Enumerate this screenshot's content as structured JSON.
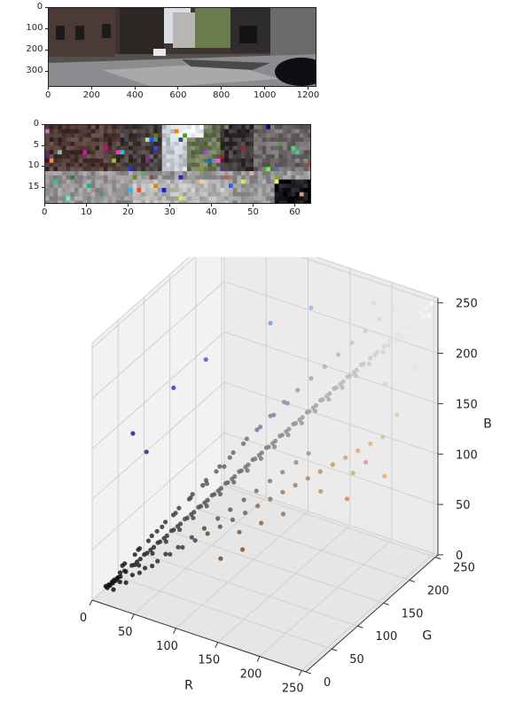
{
  "chart_data": [
    {
      "type": "image",
      "description_free": true,
      "xticks": [
        "0",
        "200",
        "400",
        "600",
        "800",
        "1000",
        "1200"
      ],
      "yticks": [
        "0",
        "100",
        "200",
        "300"
      ],
      "xlim": [
        0,
        1242
      ],
      "ylim": [
        375,
        0
      ]
    },
    {
      "type": "image",
      "xticks": [
        "0",
        "10",
        "20",
        "30",
        "40",
        "50",
        "60"
      ],
      "yticks": [
        "0",
        "5",
        "10",
        "15"
      ],
      "xlim": [
        0,
        64
      ],
      "ylim": [
        19,
        0
      ]
    },
    {
      "type": "scatter",
      "projection": "3d",
      "xlabel": "R",
      "ylabel": "G",
      "zlabel": "B",
      "xlim": [
        0,
        255
      ],
      "ylim": [
        0,
        255
      ],
      "zlim": [
        0,
        255
      ],
      "xticks": [
        "0",
        "50",
        "100",
        "150",
        "200",
        "250"
      ],
      "yticks": [
        "0",
        "50",
        "100",
        "150",
        "200",
        "250"
      ],
      "zticks": [
        "0",
        "50",
        "100",
        "150",
        "200",
        "250"
      ],
      "grid": true,
      "color_mode": "rgb_of_point",
      "points": [
        [
          10,
          10,
          12
        ],
        [
          15,
          14,
          16
        ],
        [
          20,
          18,
          20
        ],
        [
          25,
          22,
          26
        ],
        [
          30,
          28,
          30
        ],
        [
          35,
          30,
          34
        ],
        [
          40,
          36,
          40
        ],
        [
          45,
          40,
          44
        ],
        [
          50,
          46,
          50
        ],
        [
          55,
          50,
          54
        ],
        [
          60,
          56,
          60
        ],
        [
          65,
          60,
          64
        ],
        [
          70,
          66,
          70
        ],
        [
          75,
          70,
          74
        ],
        [
          80,
          76,
          80
        ],
        [
          85,
          80,
          84
        ],
        [
          90,
          86,
          90
        ],
        [
          95,
          90,
          94
        ],
        [
          100,
          96,
          100
        ],
        [
          105,
          100,
          104
        ],
        [
          110,
          106,
          110
        ],
        [
          115,
          110,
          114
        ],
        [
          120,
          116,
          120
        ],
        [
          125,
          120,
          124
        ],
        [
          130,
          126,
          130
        ],
        [
          135,
          130,
          134
        ],
        [
          140,
          136,
          140
        ],
        [
          145,
          140,
          144
        ],
        [
          150,
          146,
          150
        ],
        [
          155,
          150,
          154
        ],
        [
          160,
          156,
          160
        ],
        [
          165,
          160,
          164
        ],
        [
          170,
          166,
          170
        ],
        [
          175,
          170,
          174
        ],
        [
          180,
          176,
          180
        ],
        [
          185,
          180,
          184
        ],
        [
          190,
          186,
          190
        ],
        [
          195,
          190,
          194
        ],
        [
          200,
          196,
          200
        ],
        [
          210,
          206,
          208
        ],
        [
          220,
          216,
          216
        ],
        [
          230,
          226,
          222
        ],
        [
          240,
          236,
          230
        ],
        [
          250,
          246,
          240
        ],
        [
          18,
          12,
          10
        ],
        [
          28,
          20,
          16
        ],
        [
          38,
          30,
          24
        ],
        [
          48,
          38,
          30
        ],
        [
          58,
          48,
          40
        ],
        [
          68,
          56,
          46
        ],
        [
          78,
          66,
          54
        ],
        [
          88,
          74,
          62
        ],
        [
          98,
          84,
          70
        ],
        [
          108,
          92,
          78
        ],
        [
          118,
          102,
          86
        ],
        [
          128,
          110,
          94
        ],
        [
          138,
          120,
          102
        ],
        [
          148,
          128,
          110
        ],
        [
          158,
          138,
          118
        ],
        [
          168,
          146,
          126
        ],
        [
          24,
          24,
          32
        ],
        [
          34,
          34,
          44
        ],
        [
          44,
          44,
          56
        ],
        [
          54,
          54,
          68
        ],
        [
          64,
          64,
          80
        ],
        [
          74,
          74,
          92
        ],
        [
          84,
          84,
          104
        ],
        [
          94,
          94,
          116
        ],
        [
          104,
          104,
          128
        ],
        [
          114,
          114,
          140
        ],
        [
          124,
          124,
          150
        ],
        [
          134,
          134,
          160
        ],
        [
          144,
          144,
          170
        ],
        [
          20,
          26,
          28
        ],
        [
          32,
          40,
          42
        ],
        [
          44,
          54,
          56
        ],
        [
          56,
          66,
          70
        ],
        [
          68,
          80,
          84
        ],
        [
          80,
          92,
          96
        ],
        [
          92,
          106,
          110
        ],
        [
          40,
          40,
          140
        ],
        [
          30,
          30,
          160
        ],
        [
          60,
          60,
          200
        ],
        [
          80,
          90,
          220
        ],
        [
          120,
          150,
          240
        ],
        [
          150,
          180,
          250
        ],
        [
          200,
          220,
          250
        ],
        [
          220,
          210,
          180
        ],
        [
          240,
          200,
          160
        ],
        [
          250,
          220,
          200
        ],
        [
          230,
          120,
          110
        ],
        [
          240,
          140,
          140
        ],
        [
          250,
          160,
          120
        ],
        [
          200,
          180,
          100
        ],
        [
          180,
          150,
          90
        ],
        [
          160,
          110,
          80
        ],
        [
          140,
          100,
          70
        ],
        [
          120,
          90,
          60
        ],
        [
          130,
          80,
          50
        ],
        [
          110,
          70,
          40
        ],
        [
          12,
          10,
          11
        ],
        [
          14,
          12,
          13
        ],
        [
          16,
          14,
          15
        ],
        [
          18,
          16,
          17
        ],
        [
          13,
          11,
          14
        ],
        [
          17,
          15,
          18
        ],
        [
          22,
          19,
          21
        ],
        [
          26,
          23,
          25
        ],
        [
          21,
          20,
          24
        ],
        [
          19,
          17,
          19
        ],
        [
          33,
          29,
          31
        ],
        [
          37,
          33,
          36
        ],
        [
          42,
          38,
          41
        ],
        [
          47,
          43,
          46
        ],
        [
          52,
          47,
          51
        ],
        [
          57,
          52,
          56
        ],
        [
          62,
          57,
          61
        ],
        [
          67,
          62,
          66
        ],
        [
          72,
          67,
          71
        ],
        [
          77,
          72,
          76
        ],
        [
          82,
          77,
          81
        ],
        [
          87,
          82,
          86
        ],
        [
          92,
          87,
          91
        ],
        [
          97,
          92,
          96
        ],
        [
          102,
          97,
          101
        ],
        [
          107,
          102,
          106
        ],
        [
          112,
          107,
          111
        ],
        [
          117,
          112,
          116
        ],
        [
          122,
          117,
          121
        ],
        [
          127,
          122,
          126
        ],
        [
          132,
          127,
          131
        ],
        [
          137,
          132,
          136
        ],
        [
          142,
          137,
          141
        ],
        [
          147,
          142,
          146
        ],
        [
          152,
          147,
          151
        ],
        [
          157,
          152,
          156
        ],
        [
          162,
          157,
          161
        ],
        [
          167,
          162,
          166
        ],
        [
          172,
          167,
          171
        ],
        [
          177,
          172,
          176
        ],
        [
          182,
          177,
          181
        ],
        [
          187,
          182,
          186
        ],
        [
          192,
          187,
          191
        ],
        [
          197,
          192,
          196
        ],
        [
          202,
          197,
          201
        ],
        [
          207,
          202,
          206
        ],
        [
          212,
          207,
          211
        ],
        [
          217,
          212,
          216
        ],
        [
          222,
          217,
          221
        ],
        [
          227,
          222,
          226
        ],
        [
          232,
          228,
          232
        ],
        [
          236,
          232,
          236
        ],
        [
          240,
          236,
          240
        ],
        [
          244,
          240,
          244
        ],
        [
          248,
          244,
          248
        ],
        [
          252,
          248,
          252
        ],
        [
          36,
          32,
          30
        ],
        [
          46,
          42,
          40
        ],
        [
          56,
          52,
          50
        ],
        [
          66,
          62,
          60
        ],
        [
          76,
          72,
          70
        ],
        [
          86,
          82,
          80
        ],
        [
          96,
          92,
          90
        ],
        [
          106,
          102,
          100
        ],
        [
          116,
          112,
          110
        ],
        [
          126,
          122,
          120
        ],
        [
          136,
          132,
          130
        ],
        [
          146,
          142,
          140
        ],
        [
          156,
          152,
          150
        ],
        [
          166,
          162,
          160
        ],
        [
          176,
          172,
          170
        ],
        [
          186,
          182,
          180
        ],
        [
          196,
          192,
          190
        ],
        [
          206,
          202,
          200
        ],
        [
          216,
          212,
          210
        ],
        [
          226,
          222,
          220
        ],
        [
          236,
          232,
          230
        ],
        [
          246,
          242,
          240
        ],
        [
          30,
          34,
          38
        ],
        [
          40,
          44,
          50
        ],
        [
          50,
          54,
          62
        ],
        [
          60,
          64,
          74
        ],
        [
          70,
          74,
          86
        ],
        [
          80,
          84,
          98
        ],
        [
          90,
          94,
          110
        ],
        [
          100,
          104,
          122
        ],
        [
          110,
          114,
          134
        ],
        [
          120,
          124,
          146
        ],
        [
          130,
          134,
          158
        ],
        [
          140,
          144,
          170
        ],
        [
          150,
          154,
          180
        ],
        [
          160,
          164,
          190
        ],
        [
          170,
          174,
          200
        ],
        [
          180,
          184,
          210
        ],
        [
          190,
          194,
          220
        ],
        [
          200,
          204,
          230
        ],
        [
          210,
          214,
          240
        ],
        [
          220,
          224,
          248
        ],
        [
          22,
          18,
          16
        ],
        [
          32,
          26,
          22
        ],
        [
          42,
          34,
          28
        ],
        [
          52,
          42,
          34
        ],
        [
          62,
          50,
          40
        ],
        [
          72,
          58,
          46
        ],
        [
          82,
          66,
          52
        ],
        [
          92,
          74,
          58
        ],
        [
          102,
          82,
          64
        ],
        [
          112,
          90,
          70
        ],
        [
          122,
          98,
          76
        ],
        [
          132,
          106,
          82
        ],
        [
          142,
          114,
          88
        ],
        [
          152,
          122,
          94
        ],
        [
          162,
          130,
          100
        ],
        [
          172,
          138,
          106
        ],
        [
          182,
          146,
          112
        ],
        [
          192,
          154,
          118
        ],
        [
          202,
          162,
          124
        ],
        [
          212,
          170,
          130
        ],
        [
          222,
          178,
          136
        ],
        [
          232,
          186,
          142
        ]
      ]
    }
  ]
}
